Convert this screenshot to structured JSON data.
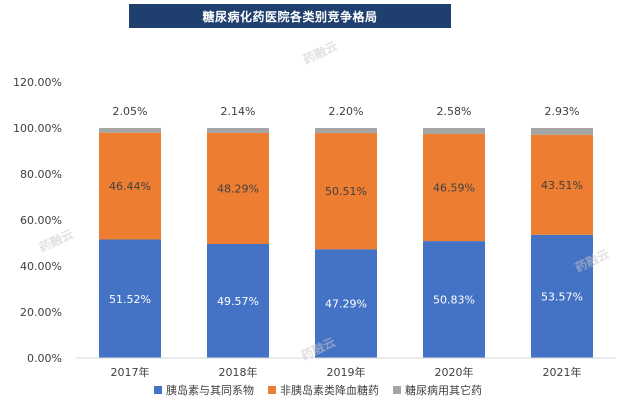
{
  "title": "糖尿病化药医院各类别竞争格局",
  "watermark": "药融云",
  "chart_data": {
    "type": "bar",
    "stacked": true,
    "categories": [
      "2017年",
      "2018年",
      "2019年",
      "2020年",
      "2021年"
    ],
    "series": [
      {
        "name": "胰岛素与其同系物",
        "color": "#4472c4",
        "values": [
          51.52,
          49.57,
          47.29,
          50.83,
          53.57
        ],
        "labels": [
          "51.52%",
          "49.57%",
          "47.29%",
          "50.83%",
          "53.57%"
        ],
        "label_color": "#ffffff"
      },
      {
        "name": "非胰岛素类降血糖药",
        "color": "#ed7d31",
        "values": [
          46.44,
          48.29,
          50.51,
          46.59,
          43.51
        ],
        "labels": [
          "46.44%",
          "48.29%",
          "50.51%",
          "46.59%",
          "43.51%"
        ],
        "label_color": "#404040"
      },
      {
        "name": "糖尿病用其它药",
        "color": "#a5a5a5",
        "values": [
          2.05,
          2.14,
          2.2,
          2.58,
          2.93
        ],
        "labels": [
          "2.05%",
          "2.14%",
          "2.20%",
          "2.58%",
          "2.93%"
        ],
        "label_color": "#404040"
      }
    ],
    "yticks": [
      "0.00%",
      "20.00%",
      "40.00%",
      "60.00%",
      "80.00%",
      "100.00%",
      "120.00%"
    ],
    "ylim": [
      0,
      120
    ],
    "grid": false,
    "legend_position": "bottom"
  }
}
